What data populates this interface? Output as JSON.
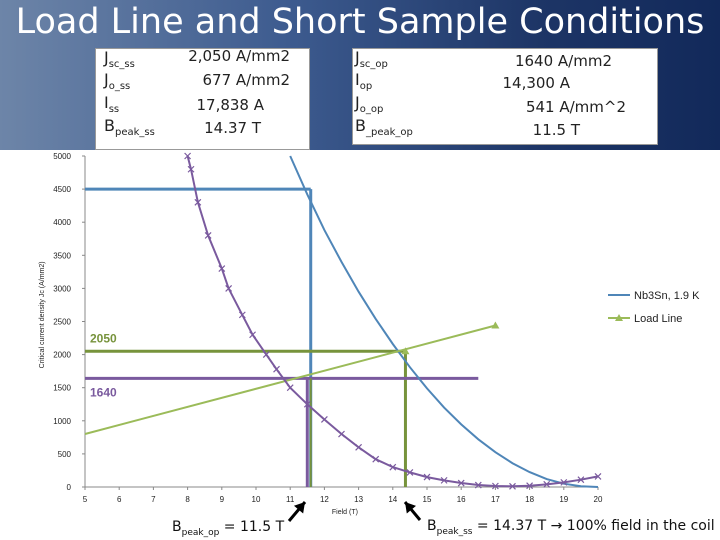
{
  "slide": {
    "title": "Load Line and Short Sample Conditions"
  },
  "ss_panel": {
    "labels": [
      {
        "main": "J",
        "sub": "sc_ss"
      },
      {
        "main": "J",
        "sub": "o_ss"
      },
      {
        "main": "I",
        "sub": "ss"
      },
      {
        "main": "B",
        "sub": "peak_ss"
      }
    ],
    "values": [
      "2,050 A/mm2",
      "677 A/mm2",
      "17,838 A",
      "14.37 T"
    ]
  },
  "op_panel": {
    "labels": [
      {
        "main": "J",
        "sub": "sc_op"
      },
      {
        "main": "I",
        "sub": "op"
      },
      {
        "main": "J",
        "sub": "o_op"
      },
      {
        "main": "B",
        "sub": "_peak_op"
      }
    ],
    "values": [
      "1640 A/mm2",
      "14,300 A",
      "541 A/mm^2",
      "11.5 T"
    ]
  },
  "bottom_notes": {
    "op_prefix": "B",
    "op_sub": "peak_op",
    "op_rest": " = 11.5 T",
    "ss_prefix": "B",
    "ss_sub": "peak_ss",
    "ss_rest": " = 14.37 T → 100% field in the coil"
  },
  "colors": {
    "nb3sn": "#4f86b8",
    "loadline": "#9bbb59",
    "purple": "#7a5a9e",
    "olive": "#77933c",
    "grid": "#d9d9d9"
  },
  "chart_data": {
    "type": "line",
    "xlabel": "Field (T)",
    "ylabel": "Critical current density Jc (A/mm2)",
    "xlim": [
      5,
      20
    ],
    "ylim": [
      0,
      5000
    ],
    "x_ticks": [
      "5",
      "6",
      "7",
      "8",
      "9",
      "10",
      "11",
      "12",
      "13",
      "14",
      "15",
      "16",
      "17",
      "18",
      "19",
      "20"
    ],
    "y_ticks": [
      "0",
      "500",
      "1000",
      "1500",
      "2000",
      "2500",
      "3000",
      "3500",
      "4000",
      "4500",
      "5000"
    ],
    "grid": false,
    "legend_position": "right",
    "series": [
      {
        "name": "Nb3Sn, 1.9 K",
        "color": "#4f86b8",
        "marker": "none",
        "x": [
          11.0,
          11.5,
          12.0,
          12.5,
          13.0,
          13.5,
          14.0,
          14.5,
          15.0,
          15.5,
          16.0,
          16.5,
          17.0,
          17.5,
          18.0,
          18.5,
          19.0,
          19.5,
          20.0
        ],
        "y": [
          5000,
          4420,
          3880,
          3400,
          2950,
          2540,
          2160,
          1810,
          1490,
          1200,
          945,
          720,
          525,
          360,
          225,
          120,
          50,
          10,
          0
        ]
      },
      {
        "name": "Load Line",
        "color": "#9bbb59",
        "marker": "triangle",
        "x": [
          5,
          17
        ],
        "y": [
          800,
          2440
        ]
      },
      {
        "name": "",
        "color": "#7a5a9e",
        "marker": "x",
        "x": [
          8.0,
          8.1,
          8.3,
          8.6,
          9.0,
          9.2,
          9.6,
          9.9,
          10.3,
          10.6,
          11.0,
          11.5,
          12.0,
          12.5,
          13.0,
          13.5,
          14.0,
          14.5,
          15.0,
          15.5,
          16.0,
          16.5,
          17.0,
          17.5,
          18.0,
          18.5,
          19.0,
          19.5,
          20.0
        ],
        "y": [
          5000,
          4800,
          4300,
          3800,
          3300,
          3000,
          2600,
          2300,
          2000,
          1780,
          1500,
          1250,
          1020,
          800,
          600,
          420,
          300,
          220,
          150,
          100,
          60,
          30,
          15,
          10,
          20,
          40,
          70,
          110,
          160
        ]
      }
    ],
    "annotations": {
      "jsc_ss_label": "2050",
      "jsc_op_label": "1640",
      "blue_h_y": 4500,
      "blue_h_x_end": 11.6,
      "blue_v_x": 11.6,
      "ss_h_y": 2050,
      "ss_h_x_end": 14.37,
      "ss_v_x": 14.37,
      "op_h_y": 1640,
      "op_h_x_end": 16.5,
      "op_v_x": 11.5,
      "op_v_x2": 11.6
    }
  }
}
